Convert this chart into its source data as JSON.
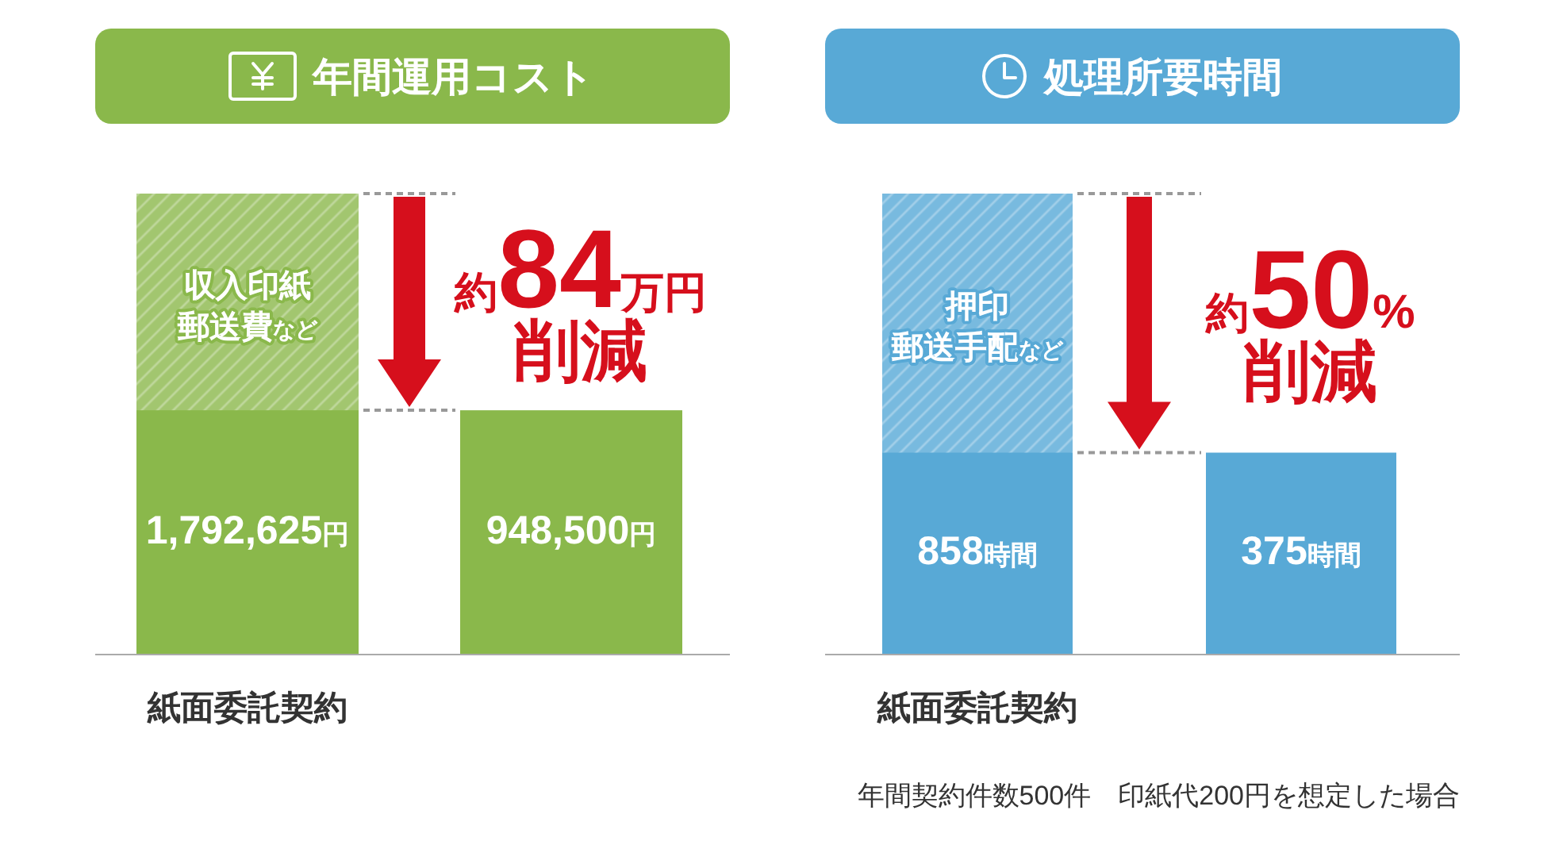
{
  "chart_data": [
    {
      "type": "bar",
      "title": "年間運用コスト",
      "categories": [
        "紙面委託契約",
        null
      ],
      "color": "#8ab84b",
      "values": [
        1792625,
        948500
      ],
      "value_labels": [
        "1,792,625円",
        "948,500円"
      ],
      "bands": [
        {
          "axis": "y",
          "from": 948500,
          "to": 1792625,
          "label": "収入印紙郵送費など",
          "color": "#b2cf87"
        }
      ],
      "ref_lines": [
        {
          "axis": "y",
          "value": 1792625,
          "color": "#999999",
          "line_style": "dashed"
        },
        {
          "axis": "y",
          "value": 948500,
          "color": "#999999",
          "line_style": "dashed"
        }
      ],
      "annotations": [
        "約84万円削減"
      ]
    },
    {
      "type": "bar",
      "title": "処理所要時間",
      "categories": [
        "紙面委託契約",
        null
      ],
      "color": "#58a9d6",
      "values": [
        858,
        375
      ],
      "value_labels": [
        "858時間",
        "375時間"
      ],
      "bands": [
        {
          "axis": "y",
          "from": 375,
          "to": 858,
          "label": "押印郵送手配など",
          "color": "#8dc4e5"
        }
      ],
      "ref_lines": [
        {
          "axis": "y",
          "value": 858,
          "color": "#999999",
          "line_style": "dashed"
        },
        {
          "axis": "y",
          "value": 375,
          "color": "#999999",
          "line_style": "dashed"
        }
      ],
      "annotations": [
        "約50%削減",
        "年間契約件数500件　印紙代200円を想定した場合"
      ]
    }
  ]
}
